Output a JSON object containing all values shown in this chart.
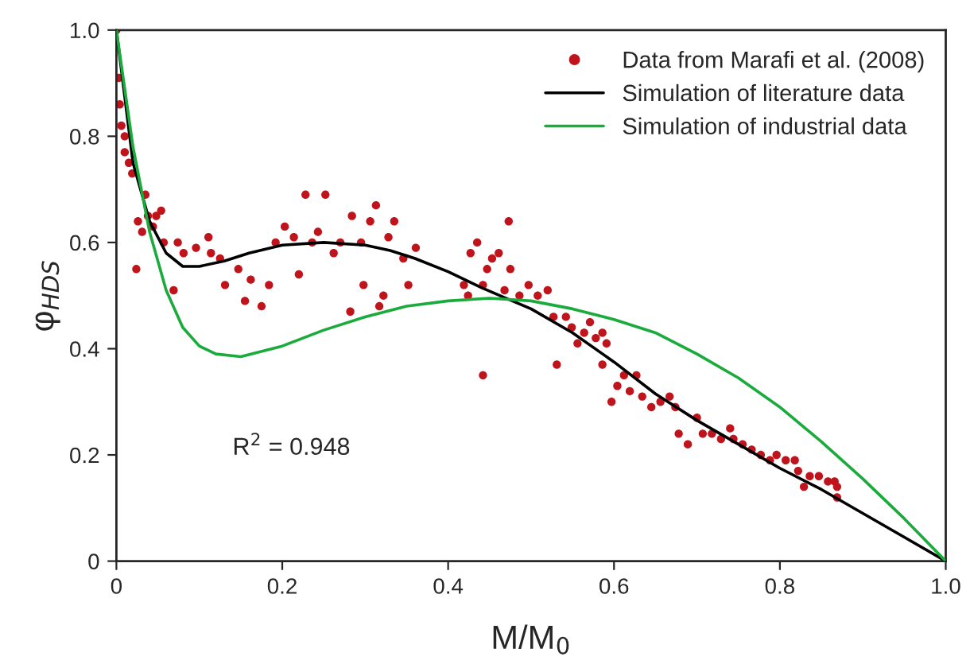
{
  "chart_data": {
    "type": "scatter",
    "xlabel": "M/M$_{0}$",
    "ylabel": "φ$_{HDS}$",
    "annotations": [
      "R$^{2}$ = 0.948"
    ],
    "xlim": [
      0,
      1
    ],
    "ylim": [
      0,
      1
    ],
    "xticks": [
      0,
      0.2,
      0.4,
      0.6,
      0.8,
      {
        "value": 1,
        "label": "1.0"
      }
    ],
    "yticks": [
      0,
      0.2,
      0.4,
      0.6,
      0.8,
      {
        "value": 1,
        "label": "1.0"
      }
    ],
    "grid": false,
    "legend": "top right",
    "series": [
      {
        "name": "Data from Marafi et al. (2008)",
        "marker": "circle",
        "color": "#c0141c",
        "x": [
          0,
          0.003,
          0.004,
          0.006,
          0.01,
          0.01,
          0.015,
          0.019,
          0.024,
          0.026,
          0.031,
          0.035,
          0.038,
          0.044,
          0.048,
          0.054,
          0.057,
          0.069,
          0.074,
          0.081,
          0.096,
          0.111,
          0.114,
          0.125,
          0.131,
          0.147,
          0.155,
          0.162,
          0.175,
          0.184,
          0.192,
          0.203,
          0.214,
          0.22,
          0.228,
          0.236,
          0.243,
          0.252,
          0.262,
          0.27,
          0.282,
          0.284,
          0.295,
          0.298,
          0.306,
          0.313,
          0.317,
          0.322,
          0.328,
          0.335,
          0.346,
          0.352,
          0.361,
          0.419,
          0.424,
          0.427,
          0.435,
          0.442,
          0.442,
          0.447,
          0.453,
          0.461,
          0.468,
          0.473,
          0.475,
          0.486,
          0.497,
          0.508,
          0.52,
          0.527,
          0.531,
          0.542,
          0.549,
          0.556,
          0.564,
          0.571,
          0.578,
          0.586,
          0.586,
          0.591,
          0.597,
          0.604,
          0.612,
          0.619,
          0.627,
          0.634,
          0.645,
          0.656,
          0.667,
          0.674,
          0.678,
          0.689,
          0.7,
          0.707,
          0.718,
          0.729,
          0.74,
          0.744,
          0.755,
          0.766,
          0.777,
          0.788,
          0.796,
          0.807,
          0.818,
          0.822,
          0.829,
          0.836,
          0.847,
          0.858,
          0.866,
          0.869,
          0.869
        ],
        "values": [
          1.0,
          0.91,
          0.86,
          0.82,
          0.8,
          0.77,
          0.75,
          0.73,
          0.55,
          0.64,
          0.62,
          0.69,
          0.65,
          0.63,
          0.65,
          0.66,
          0.6,
          0.51,
          0.6,
          0.58,
          0.59,
          0.61,
          0.58,
          0.57,
          0.52,
          0.55,
          0.49,
          0.53,
          0.48,
          0.52,
          0.6,
          0.63,
          0.61,
          0.54,
          0.69,
          0.6,
          0.62,
          0.69,
          0.58,
          0.6,
          0.47,
          0.65,
          0.6,
          0.52,
          0.64,
          0.67,
          0.48,
          0.5,
          0.61,
          0.64,
          0.57,
          0.52,
          0.59,
          0.52,
          0.5,
          0.58,
          0.6,
          0.52,
          0.35,
          0.55,
          0.57,
          0.58,
          0.51,
          0.64,
          0.55,
          0.5,
          0.52,
          0.5,
          0.51,
          0.46,
          0.37,
          0.46,
          0.44,
          0.41,
          0.43,
          0.45,
          0.42,
          0.43,
          0.37,
          0.41,
          0.3,
          0.33,
          0.35,
          0.32,
          0.35,
          0.31,
          0.29,
          0.3,
          0.31,
          0.29,
          0.24,
          0.22,
          0.27,
          0.24,
          0.24,
          0.23,
          0.25,
          0.23,
          0.22,
          0.21,
          0.2,
          0.19,
          0.2,
          0.19,
          0.19,
          0.17,
          0.14,
          0.16,
          0.16,
          0.15,
          0.15,
          0.12,
          0.14
        ]
      },
      {
        "name": "Simulation of literature data",
        "type": "line",
        "marker": "none",
        "line_style": "solid",
        "color": "#000000",
        "x": [
          0,
          0.02,
          0.04,
          0.06,
          0.08,
          0.1,
          0.13,
          0.16,
          0.2,
          0.25,
          0.3,
          0.33,
          0.36,
          0.4,
          0.44,
          0.47,
          0.5,
          0.55,
          0.6,
          0.65,
          0.7,
          0.75,
          0.8,
          0.85,
          0.9,
          0.95,
          1.0
        ],
        "values": [
          1.0,
          0.75,
          0.64,
          0.58,
          0.555,
          0.555,
          0.565,
          0.58,
          0.595,
          0.6,
          0.595,
          0.585,
          0.57,
          0.545,
          0.515,
          0.495,
          0.475,
          0.43,
          0.375,
          0.315,
          0.265,
          0.22,
          0.175,
          0.135,
          0.09,
          0.045,
          0
        ]
      },
      {
        "name": "Simulation of industrial data",
        "type": "line",
        "marker": "none",
        "line_style": "solid",
        "color": "#1aab3c",
        "x": [
          0,
          0.02,
          0.04,
          0.06,
          0.08,
          0.1,
          0.12,
          0.15,
          0.2,
          0.25,
          0.3,
          0.35,
          0.4,
          0.45,
          0.5,
          0.55,
          0.6,
          0.65,
          0.7,
          0.75,
          0.8,
          0.85,
          0.9,
          0.95,
          1.0
        ],
        "values": [
          1.0,
          0.78,
          0.62,
          0.51,
          0.44,
          0.405,
          0.39,
          0.385,
          0.405,
          0.435,
          0.46,
          0.48,
          0.49,
          0.495,
          0.49,
          0.475,
          0.455,
          0.43,
          0.39,
          0.345,
          0.29,
          0.225,
          0.155,
          0.08,
          0
        ]
      }
    ]
  }
}
